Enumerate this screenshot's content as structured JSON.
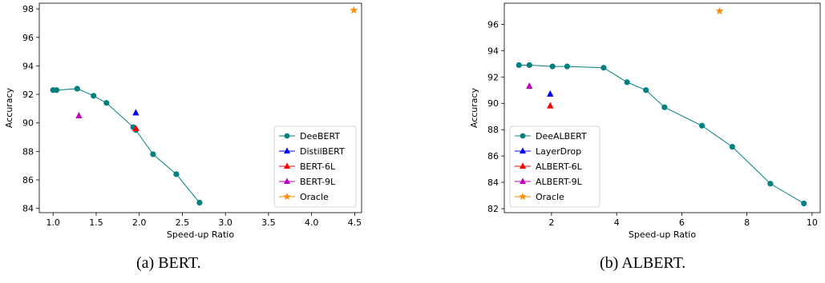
{
  "captions": {
    "left": "(a) BERT.",
    "right": "(b) ALBERT."
  },
  "colors": {
    "teal": "#008080",
    "blue": "#0000ff",
    "red": "#ff0000",
    "magenta": "#bf00bf",
    "orange": "#ff8c00"
  },
  "chart_data": [
    {
      "type": "line",
      "title": "",
      "xlabel": "Speed-up Ratio",
      "ylabel": "Accuracy",
      "xlim": [
        0.84,
        4.58
      ],
      "ylim": [
        83.7,
        98.4
      ],
      "xticks": [
        1.0,
        1.5,
        2.0,
        2.5,
        3.0,
        3.5,
        4.0,
        4.5
      ],
      "xtick_labels": [
        "1.0",
        "1.5",
        "2.0",
        "2.5",
        "3.0",
        "3.5",
        "4.0",
        "4.5"
      ],
      "yticks": [
        84,
        86,
        88,
        90,
        92,
        94,
        96,
        98
      ],
      "ytick_labels": [
        "84",
        "86",
        "88",
        "90",
        "92",
        "94",
        "96",
        "98"
      ],
      "legend_position": "lower-right",
      "series": [
        {
          "name": "DeeBERT",
          "marker": "circle",
          "color": "#008080",
          "connected": true,
          "x": [
            1.0,
            1.04,
            1.28,
            1.47,
            1.62,
            1.93,
            1.96,
            2.16,
            2.43,
            2.7
          ],
          "y": [
            92.3,
            92.3,
            92.4,
            91.9,
            91.4,
            89.7,
            89.5,
            87.8,
            86.4,
            84.4
          ]
        },
        {
          "name": "DistilBERT",
          "marker": "triangle",
          "color": "#0000ff",
          "x": [
            1.96
          ],
          "y": [
            90.7
          ]
        },
        {
          "name": "BERT-6L",
          "marker": "triangle",
          "color": "#ff0000",
          "x": [
            1.96
          ],
          "y": [
            89.6
          ]
        },
        {
          "name": "BERT-9L",
          "marker": "triangle",
          "color": "#bf00bf",
          "x": [
            1.3
          ],
          "y": [
            90.5
          ]
        },
        {
          "name": "Oracle",
          "marker": "star",
          "color": "#ff8c00",
          "x": [
            4.49
          ],
          "y": [
            97.9
          ]
        }
      ]
    },
    {
      "type": "line",
      "title": "",
      "xlabel": "Speed-up Ratio",
      "ylabel": "Accuracy",
      "xlim": [
        0.55,
        10.25
      ],
      "ylim": [
        81.7,
        97.6
      ],
      "xticks": [
        2,
        4,
        6,
        8,
        10
      ],
      "xtick_labels": [
        "2",
        "4",
        "6",
        "8",
        "10"
      ],
      "yticks": [
        82,
        84,
        86,
        88,
        90,
        92,
        94,
        96
      ],
      "ytick_labels": [
        "82",
        "84",
        "86",
        "88",
        "90",
        "92",
        "94",
        "96"
      ],
      "legend_position": "lower-left",
      "series": [
        {
          "name": "DeeALBERT",
          "marker": "circle",
          "color": "#008080",
          "connected": true,
          "x": [
            1.0,
            1.32,
            2.03,
            2.48,
            3.6,
            4.32,
            4.9,
            5.47,
            6.62,
            7.55,
            8.72,
            9.75
          ],
          "y": [
            92.9,
            92.9,
            92.8,
            92.8,
            92.7,
            91.6,
            91.0,
            89.7,
            88.3,
            86.7,
            83.9,
            82.4
          ]
        },
        {
          "name": "LayerDrop",
          "marker": "triangle",
          "color": "#0000ff",
          "x": [
            1.96
          ],
          "y": [
            90.7
          ]
        },
        {
          "name": "ALBERT-6L",
          "marker": "triangle",
          "color": "#ff0000",
          "x": [
            1.96
          ],
          "y": [
            89.8
          ]
        },
        {
          "name": "ALBERT-9L",
          "marker": "triangle",
          "color": "#bf00bf",
          "x": [
            1.32
          ],
          "y": [
            91.3
          ]
        },
        {
          "name": "Oracle",
          "marker": "star",
          "color": "#ff8c00",
          "x": [
            7.16
          ],
          "y": [
            97.0
          ]
        }
      ]
    }
  ]
}
